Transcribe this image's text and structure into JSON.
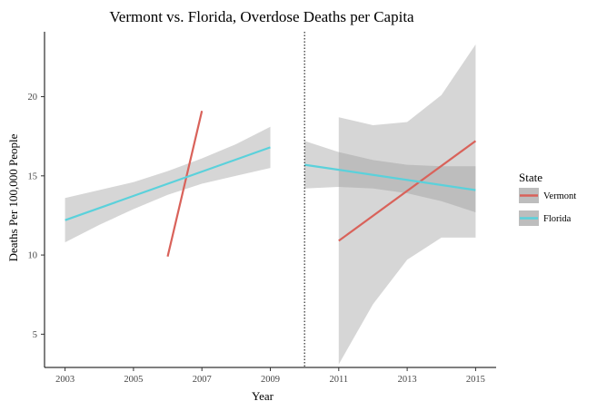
{
  "chart_data": {
    "type": "line",
    "title": "Vermont vs. Florida, Overdose Deaths per Capita",
    "xlabel": "Year",
    "ylabel": "Deaths Per 100,000 People",
    "xlim": [
      2002.4,
      2015.6
    ],
    "ylim": [
      2.9,
      24.1
    ],
    "x_ticks": [
      2003,
      2005,
      2007,
      2009,
      2011,
      2013,
      2015
    ],
    "y_ticks": [
      5,
      10,
      15,
      20
    ],
    "reference_line": {
      "x": 2010,
      "style": "dotted"
    },
    "legend": {
      "title": "State",
      "placement": "right",
      "entries": [
        {
          "name": "Vermont",
          "color": "#d9625a"
        },
        {
          "name": "Florida",
          "color": "#5ad1db"
        }
      ]
    },
    "series": [
      {
        "name": "Vermont",
        "color": "#d9625a",
        "segments": [
          {
            "x": [
              2006,
              2007
            ],
            "y": [
              9.9,
              19.1
            ],
            "band": null
          },
          {
            "x": [
              2011,
              2015
            ],
            "y": [
              10.9,
              17.2
            ],
            "band": {
              "x": [
                2011,
                2012,
                2013,
                2014,
                2015
              ],
              "lower": [
                3.1,
                6.9,
                9.7,
                11.1,
                11.1
              ],
              "upper": [
                18.7,
                18.2,
                18.4,
                20.1,
                23.3
              ]
            }
          }
        ]
      },
      {
        "name": "Florida",
        "color": "#5ad1db",
        "segments": [
          {
            "x": [
              2003,
              2009
            ],
            "y": [
              12.2,
              16.8
            ],
            "band": {
              "x": [
                2003,
                2004,
                2005,
                2006,
                2007,
                2008,
                2009
              ],
              "lower": [
                10.8,
                11.9,
                12.9,
                13.8,
                14.5,
                15.0,
                15.5
              ],
              "upper": [
                13.6,
                14.1,
                14.6,
                15.3,
                16.1,
                17.0,
                18.1
              ]
            }
          },
          {
            "x": [
              2010,
              2015
            ],
            "y": [
              15.7,
              14.1
            ],
            "band": {
              "x": [
                2010,
                2011,
                2012,
                2013,
                2014,
                2015
              ],
              "lower": [
                14.2,
                14.3,
                14.2,
                13.9,
                13.4,
                12.7
              ],
              "upper": [
                17.2,
                16.5,
                16.0,
                15.7,
                15.6,
                15.6
              ]
            }
          }
        ]
      }
    ]
  }
}
